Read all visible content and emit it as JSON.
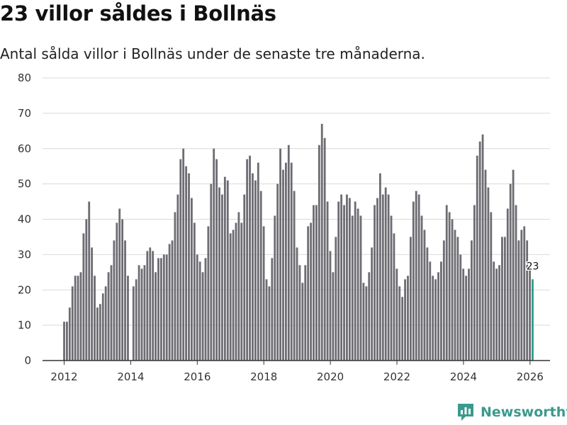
{
  "title": "23 villor såldes i Bollnäs",
  "subtitle": "Antal sålda villor i Bollnäs under de senaste tre månaderna.",
  "brand": "Newsworthy",
  "colors": {
    "bar": "#6d6c72",
    "highlight": "#2a9d8f",
    "grid": "#d9d9d9",
    "brand": "#3a9a8c"
  },
  "chart_data": {
    "type": "bar",
    "title": "23 villor såldes i Bollnäs",
    "subtitle": "Antal sålda villor i Bollnäs under de senaste tre månaderna.",
    "xlabel": "",
    "ylabel": "",
    "x_start": 2012.0,
    "x_step": 0.0833,
    "xlim": [
      2011.35,
      2026.6
    ],
    "ylim": [
      0,
      80
    ],
    "yticks": [
      0,
      10,
      20,
      30,
      40,
      50,
      60,
      70,
      80
    ],
    "xticks": [
      2012,
      2014,
      2016,
      2018,
      2020,
      2022,
      2024,
      2026
    ],
    "grid": true,
    "values": [
      11,
      11,
      15,
      21,
      24,
      24,
      25,
      36,
      40,
      45,
      32,
      24,
      15,
      16,
      19,
      21,
      25,
      27,
      34,
      39,
      43,
      40,
      34,
      24,
      0,
      21,
      23,
      27,
      26,
      27,
      31,
      32,
      31,
      25,
      29,
      29,
      30,
      30,
      33,
      34,
      42,
      47,
      57,
      60,
      55,
      53,
      46,
      39,
      30,
      28,
      25,
      29,
      38,
      50,
      60,
      57,
      49,
      47,
      52,
      51,
      36,
      37,
      39,
      42,
      39,
      47,
      57,
      58,
      53,
      51,
      56,
      48,
      38,
      23,
      21,
      29,
      41,
      50,
      60,
      54,
      56,
      61,
      56,
      48,
      32,
      27,
      22,
      27,
      38,
      39,
      44,
      44,
      61,
      67,
      63,
      45,
      31,
      25,
      35,
      45,
      47,
      44,
      47,
      46,
      41,
      45,
      43,
      41,
      22,
      21,
      25,
      32,
      44,
      46,
      53,
      47,
      49,
      47,
      41,
      36,
      26,
      21,
      18,
      23,
      24,
      35,
      45,
      48,
      47,
      41,
      37,
      32,
      28,
      24,
      23,
      25,
      28,
      34,
      44,
      42,
      40,
      37,
      35,
      30,
      26,
      24,
      26,
      34,
      44,
      58,
      62,
      64,
      54,
      49,
      42,
      28,
      26,
      27,
      35,
      35,
      43,
      50,
      54,
      44,
      34,
      37,
      38,
      34,
      27,
      23
    ],
    "highlight_last": true,
    "annotation": "23"
  }
}
